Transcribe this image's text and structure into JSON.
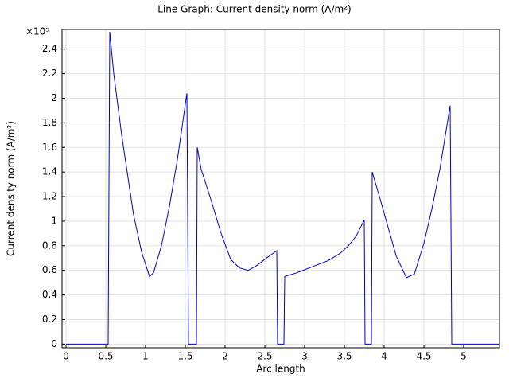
{
  "chart_data": {
    "type": "line",
    "title": "Line Graph: Current density norm (A/m²)",
    "x_label": "Arc length",
    "y_label": "Current density norm (A/m²)",
    "y_multiplier": "×10⁵",
    "xlim": [
      -0.05,
      5.45
    ],
    "ylim": [
      -0.03,
      2.56
    ],
    "xticks": [
      0,
      0.5,
      1,
      1.5,
      2,
      2.5,
      3,
      3.5,
      4,
      4.5,
      5
    ],
    "yticks": [
      0,
      0.2,
      0.4,
      0.6,
      0.8,
      1,
      1.2,
      1.4,
      1.6,
      1.8,
      2,
      2.2,
      2.4
    ],
    "grid": true,
    "series": [
      {
        "color": "#0000cc",
        "x": [
          0,
          0.53,
          0.54,
          0.55,
          0.6,
          0.7,
          0.85,
          0.95,
          1.05,
          1.1,
          1.2,
          1.3,
          1.4,
          1.52,
          1.53,
          1.54,
          1.64,
          1.65,
          1.7,
          1.82,
          1.95,
          2.07,
          2.18,
          2.29,
          2.4,
          2.5,
          2.65,
          2.66,
          2.74,
          2.75,
          2.9,
          3.1,
          3.3,
          3.45,
          3.55,
          3.65,
          3.75,
          3.76,
          3.84,
          3.85,
          3.95,
          4.05,
          4.15,
          4.28,
          4.38,
          4.5,
          4.6,
          4.7,
          4.83,
          4.84,
          4.85,
          5.45
        ],
        "values": [
          0,
          0,
          1.28,
          2.54,
          2.2,
          1.7,
          1.05,
          0.75,
          0.55,
          0.58,
          0.8,
          1.12,
          1.5,
          2.04,
          1.04,
          0,
          0,
          1.6,
          1.42,
          1.18,
          0.9,
          0.69,
          0.62,
          0.6,
          0.64,
          0.69,
          0.76,
          0,
          0,
          0.55,
          0.58,
          0.63,
          0.68,
          0.74,
          0.8,
          0.88,
          1.01,
          0,
          0,
          1.4,
          1.18,
          0.95,
          0.72,
          0.54,
          0.57,
          0.82,
          1.1,
          1.42,
          1.94,
          1.0,
          0,
          0
        ]
      }
    ]
  }
}
